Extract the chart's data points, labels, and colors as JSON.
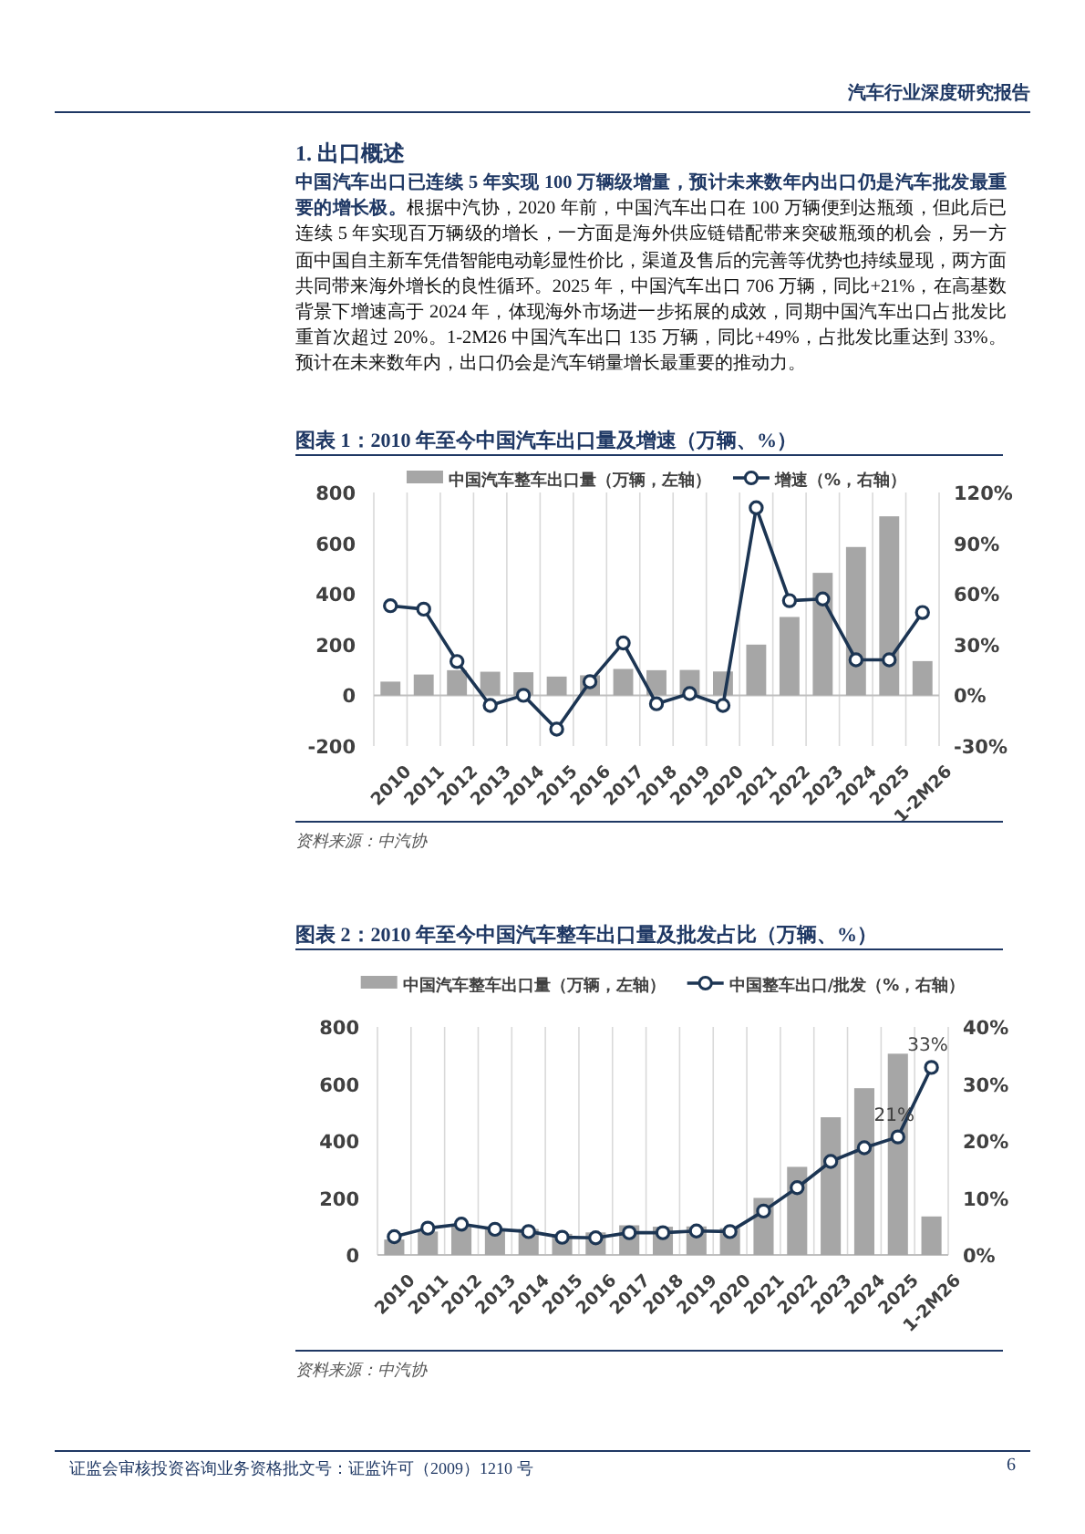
{
  "chart_data": [
    {
      "type": "bar",
      "title": "图表 1：2010 年至今中国汽车出口量及增速（万辆、%）",
      "categories": [
        "2010",
        "2011",
        "2012",
        "2013",
        "2014",
        "2015",
        "2016",
        "2017",
        "2018",
        "2019",
        "2020",
        "2021",
        "2022",
        "2023",
        "2024",
        "2025",
        "1-2M26"
      ],
      "series": [
        {
          "name": "中国汽车整车出口量（万辆，左轴）",
          "color": "#a6a6a6",
          "values": [
            54,
            82,
            99,
            93,
            91,
            74,
            79,
            104,
            99,
            100,
            94,
            200,
            309,
            483,
            585,
            706,
            135
          ]
        },
        {
          "name": "增速（%，右轴）",
          "type": "line",
          "axis": "y2",
          "color": "#1c3553",
          "values": [
            53,
            51,
            20,
            -6,
            0,
            -20,
            8,
            31,
            -5,
            1,
            -6,
            111,
            56,
            57,
            21,
            21,
            49
          ]
        }
      ],
      "ylim": [
        -200,
        800
      ],
      "yticks": [
        -200,
        0,
        200,
        400,
        600,
        800
      ],
      "y2lim": [
        -30,
        120
      ],
      "y2ticks": [
        {
          "value": -30,
          "label": "-30%"
        },
        {
          "value": 0,
          "label": "0%"
        },
        {
          "value": 30,
          "label": "30%"
        },
        {
          "value": 60,
          "label": "60%"
        },
        {
          "value": 90,
          "label": "90%"
        },
        {
          "value": 120,
          "label": "120%"
        }
      ],
      "grid": "x",
      "legend": "top",
      "marker": "circle",
      "line_style": "solid",
      "annotations": [
        "汽车行业深度研究报告",
        "1.  出口概述",
        "中国汽车出口已连续 5 年实现 100 万辆级增量，预计未来数年内出口仍是汽车批发最重要的增长极。",
        "根据中汽协，2020 年前，中国汽车出口在 100 万辆便到达瓶颈，但此后已连续 5 年实现百万辆级的增长，一方面是海外供应链错配带来突破瓶颈的机会，另一方面中国自主新车凭借智能电动彰显性价比，渠道及售后的完善等优势也持续显现，两方面共同带来海外增长的良性循环。2025 年，中国汽车出口 706 万辆，同比+21%，在高基数背景下增速高于 2024 年，体现海外市场进一步拓展的成效，同期中国汽车出口占批发比重首次超过 20%。1-2M26 中国汽车出口 135 万辆，同比+49%，占批发比重达到 33%。预计在未来数年内，出口仍会是汽车销量增长最重要的推动力。",
        "资料来源：中汽协"
      ]
    },
    {
      "type": "bar",
      "title": "图表 2：2010 年至今中国汽车整车出口量及批发占比（万辆、%）",
      "categories": [
        "2010",
        "2011",
        "2012",
        "2013",
        "2014",
        "2015",
        "2016",
        "2017",
        "2018",
        "2019",
        "2020",
        "2021",
        "2022",
        "2023",
        "2024",
        "2025",
        "1-2M26"
      ],
      "series": [
        {
          "name": "中国汽车整车出口量（万辆，左轴）",
          "color": "#a6a6a6",
          "values": [
            54,
            82,
            99,
            93,
            91,
            74,
            79,
            104,
            99,
            100,
            94,
            200,
            309,
            483,
            585,
            706,
            135
          ]
        },
        {
          "name": "中国整车出口/批发（%，右轴）",
          "type": "line",
          "axis": "y2",
          "color": "#1c3553",
          "values": [
            3.2,
            4.7,
            5.4,
            4.5,
            4.1,
            3.1,
            3.0,
            3.9,
            3.9,
            4.2,
            4.1,
            7.7,
            11.8,
            16.4,
            18.8,
            20.7,
            32.9
          ],
          "value_labels": [
            null,
            null,
            null,
            null,
            null,
            null,
            null,
            null,
            null,
            null,
            null,
            null,
            null,
            null,
            null,
            "21%",
            "33%"
          ]
        }
      ],
      "ylim": [
        0,
        800
      ],
      "yticks": [
        0,
        200,
        400,
        600,
        800
      ],
      "y2lim": [
        0,
        40
      ],
      "y2ticks": [
        {
          "value": 0,
          "label": "0%"
        },
        {
          "value": 10,
          "label": "10%"
        },
        {
          "value": 20,
          "label": "20%"
        },
        {
          "value": 30,
          "label": "30%"
        },
        {
          "value": 40,
          "label": "40%"
        }
      ],
      "grid": "x",
      "legend": "top",
      "marker": "circle",
      "line_style": "solid",
      "annotations": [
        "资料来源：中汽协",
        "证监会审核投资咨询业务资格批文号：证监许可（2009）1210 号",
        "6"
      ]
    }
  ]
}
